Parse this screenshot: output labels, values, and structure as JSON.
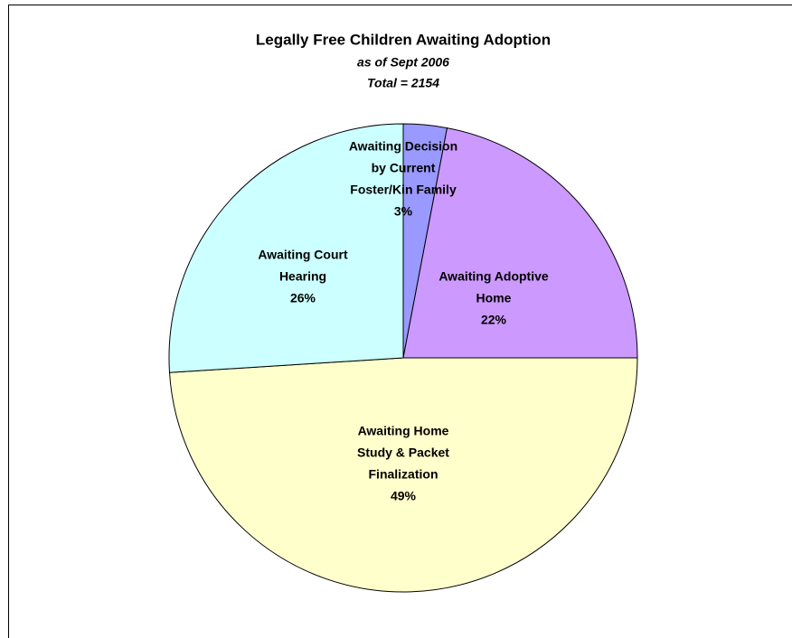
{
  "chart_data": {
    "type": "pie",
    "title": "Legally Free Children Awaiting Adoption",
    "subtitle": "as of Sept 2006",
    "annotation": "Total = 2154",
    "categories": [
      [
        "Awaiting Decision",
        "by Current",
        "Foster/Kin Family"
      ],
      [
        "Awaiting Adoptive",
        "Home"
      ],
      [
        "Awaiting Home",
        "Study & Packet",
        "Finalization"
      ],
      [
        "Awaiting Court",
        "Hearing"
      ]
    ],
    "values": [
      3,
      22,
      49,
      26
    ],
    "value_labels": [
      "3%",
      "22%",
      "49%",
      "26%"
    ],
    "colors": [
      "#9999ff",
      "#cc99ff",
      "#ffffcc",
      "#ccffff"
    ]
  }
}
